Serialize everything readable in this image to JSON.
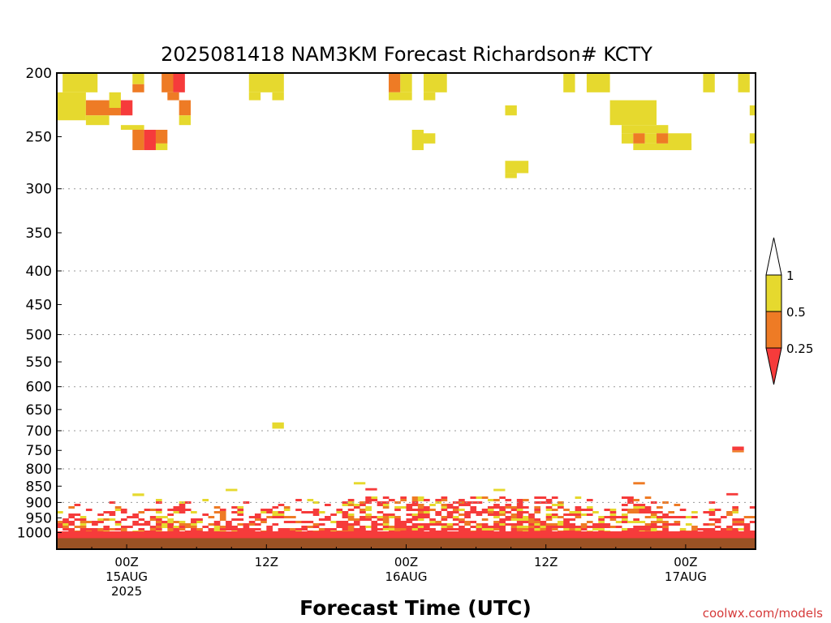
{
  "colors": {
    "ri_lt_025": "#f63b3b",
    "ri_025_05": "#ee7b25",
    "ri_05_1": "#e6d92e",
    "ground": "#9b5224",
    "grid": "#9a9a9a",
    "credit": "#d63a3a"
  },
  "chart_data": {
    "type": "heatmap",
    "title": "2025081418 NAM3KM Forecast Richardson# KCTY",
    "xlabel": "Forecast Time (UTC)",
    "ylabel": "",
    "credit": "coolwx.com/models",
    "x_unit": "forecast hour from 2025-08-14 18Z",
    "xlim": [
      0,
      60
    ],
    "y_unit": "hPa (log-pressure axis, decreasing upward)",
    "ylim": [
      1050,
      200
    ],
    "y_ticks": [
      {
        "value": 200,
        "label": "200"
      },
      {
        "value": 250,
        "label": "250"
      },
      {
        "value": 300,
        "label": "300"
      },
      {
        "value": 350,
        "label": "350"
      },
      {
        "value": 400,
        "label": "400"
      },
      {
        "value": 450,
        "label": "450"
      },
      {
        "value": 500,
        "label": "500"
      },
      {
        "value": 550,
        "label": "550"
      },
      {
        "value": 600,
        "label": "600"
      },
      {
        "value": 650,
        "label": "650"
      },
      {
        "value": 700,
        "label": "700"
      },
      {
        "value": 750,
        "label": "750"
      },
      {
        "value": 800,
        "label": "800"
      },
      {
        "value": 850,
        "label": "850"
      },
      {
        "value": 900,
        "label": "900"
      },
      {
        "value": 950,
        "label": "950"
      },
      {
        "value": 1000,
        "label": "1000"
      }
    ],
    "dotted_gridlines_at": [
      300,
      400,
      500,
      600,
      700,
      800,
      900
    ],
    "x_ticks": [
      {
        "value": 6,
        "lines": [
          "00Z",
          "15AUG",
          "2025"
        ]
      },
      {
        "value": 18,
        "lines": [
          "12Z"
        ]
      },
      {
        "value": 30,
        "lines": [
          "00Z",
          "16AUG"
        ]
      },
      {
        "value": 42,
        "lines": [
          "12Z"
        ]
      },
      {
        "value": 54,
        "lines": [
          "00Z",
          "17AUG"
        ]
      }
    ],
    "legend": {
      "placement": "right",
      "levels": [
        {
          "label": "1",
          "value": 1
        },
        {
          "label": "0.5",
          "value": 0.5
        },
        {
          "label": "0.25",
          "value": 0.25
        }
      ],
      "bins": [
        {
          "range": "> 1",
          "color": "white"
        },
        {
          "range": "0.5 - 1",
          "color": "ri_05_1"
        },
        {
          "range": "0.25 - 0.5",
          "color": "ri_025_05"
        },
        {
          "range": "< 0.25",
          "color": "ri_lt_025"
        }
      ]
    },
    "ground_level_hPa": 1020,
    "cells": [
      {
        "x0": 0.5,
        "x1": 3.5,
        "p0": 214,
        "p1": 200,
        "c": "y"
      },
      {
        "x0": 0,
        "x1": 2.5,
        "p0": 236,
        "p1": 214,
        "c": "y"
      },
      {
        "x0": 2.5,
        "x1": 5.5,
        "p0": 232,
        "p1": 220,
        "c": "o"
      },
      {
        "x0": 2.5,
        "x1": 4.5,
        "p0": 240,
        "p1": 232,
        "c": "y"
      },
      {
        "x0": 4.5,
        "x1": 5.5,
        "p0": 226,
        "p1": 214,
        "c": "y"
      },
      {
        "x0": 5.5,
        "x1": 6.5,
        "p0": 232,
        "p1": 220,
        "c": "r"
      },
      {
        "x0": 6.5,
        "x1": 7.5,
        "p0": 208,
        "p1": 200,
        "c": "y"
      },
      {
        "x0": 6.5,
        "x1": 7.5,
        "p0": 214,
        "p1": 208,
        "c": "o"
      },
      {
        "x0": 9,
        "x1": 10,
        "p0": 214,
        "p1": 200,
        "c": "o"
      },
      {
        "x0": 10,
        "x1": 11,
        "p0": 214,
        "p1": 200,
        "c": "r"
      },
      {
        "x0": 9.5,
        "x1": 10.5,
        "p0": 220,
        "p1": 214,
        "c": "o"
      },
      {
        "x0": 10.5,
        "x1": 11.5,
        "p0": 232,
        "p1": 220,
        "c": "o"
      },
      {
        "x0": 10.5,
        "x1": 11.5,
        "p0": 240,
        "p1": 232,
        "c": "y"
      },
      {
        "x0": 5.5,
        "x1": 7.5,
        "p0": 244,
        "p1": 240,
        "c": "y"
      },
      {
        "x0": 6.5,
        "x1": 7.5,
        "p0": 262,
        "p1": 244,
        "c": "o"
      },
      {
        "x0": 7.5,
        "x1": 8.5,
        "p0": 262,
        "p1": 244,
        "c": "r"
      },
      {
        "x0": 8.5,
        "x1": 9.5,
        "p0": 256,
        "p1": 244,
        "c": "o"
      },
      {
        "x0": 8.5,
        "x1": 9.5,
        "p0": 262,
        "p1": 256,
        "c": "y"
      },
      {
        "x0": 16.5,
        "x1": 19.5,
        "p0": 214,
        "p1": 200,
        "c": "y"
      },
      {
        "x0": 16.5,
        "x1": 17.5,
        "p0": 220,
        "p1": 214,
        "c": "y"
      },
      {
        "x0": 18.5,
        "x1": 19.5,
        "p0": 220,
        "p1": 214,
        "c": "y"
      },
      {
        "x0": 28.5,
        "x1": 29.5,
        "p0": 214,
        "p1": 200,
        "c": "o"
      },
      {
        "x0": 29.5,
        "x1": 30.5,
        "p0": 214,
        "p1": 200,
        "c": "y"
      },
      {
        "x0": 28.5,
        "x1": 30.5,
        "p0": 220,
        "p1": 214,
        "c": "y"
      },
      {
        "x0": 31.5,
        "x1": 33.5,
        "p0": 214,
        "p1": 200,
        "c": "y"
      },
      {
        "x0": 31.5,
        "x1": 32.5,
        "p0": 220,
        "p1": 214,
        "c": "y"
      },
      {
        "x0": 30.5,
        "x1": 31.5,
        "p0": 262,
        "p1": 244,
        "c": "y"
      },
      {
        "x0": 31.5,
        "x1": 32.5,
        "p0": 256,
        "p1": 247,
        "c": "y"
      },
      {
        "x0": 38.5,
        "x1": 39.5,
        "p0": 232,
        "p1": 224,
        "c": "y"
      },
      {
        "x0": 38.5,
        "x1": 40.5,
        "p0": 284,
        "p1": 272,
        "c": "y"
      },
      {
        "x0": 38.5,
        "x1": 39.5,
        "p0": 289,
        "p1": 284,
        "c": "y"
      },
      {
        "x0": 43.5,
        "x1": 44.5,
        "p0": 214,
        "p1": 200,
        "c": "y"
      },
      {
        "x0": 45.5,
        "x1": 47.5,
        "p0": 214,
        "p1": 200,
        "c": "y"
      },
      {
        "x0": 47.5,
        "x1": 51.5,
        "p0": 240,
        "p1": 220,
        "c": "y"
      },
      {
        "x0": 48.5,
        "x1": 52.5,
        "p0": 247,
        "p1": 240,
        "c": "y"
      },
      {
        "x0": 48.5,
        "x1": 49.5,
        "p0": 256,
        "p1": 247,
        "c": "y"
      },
      {
        "x0": 49.5,
        "x1": 50.5,
        "p0": 256,
        "p1": 247,
        "c": "o"
      },
      {
        "x0": 50.5,
        "x1": 51.5,
        "p0": 256,
        "p1": 247,
        "c": "y"
      },
      {
        "x0": 51.5,
        "x1": 52.5,
        "p0": 256,
        "p1": 247,
        "c": "o"
      },
      {
        "x0": 52.5,
        "x1": 54.5,
        "p0": 262,
        "p1": 247,
        "c": "y"
      },
      {
        "x0": 49.5,
        "x1": 54.5,
        "p0": 262,
        "p1": 256,
        "c": "y"
      },
      {
        "x0": 55.5,
        "x1": 56.5,
        "p0": 214,
        "p1": 200,
        "c": "y"
      },
      {
        "x0": 58.5,
        "x1": 59.5,
        "p0": 214,
        "p1": 200,
        "c": "y"
      },
      {
        "x0": 59.5,
        "x1": 60,
        "p0": 232,
        "p1": 224,
        "c": "y"
      },
      {
        "x0": 59.5,
        "x1": 60,
        "p0": 256,
        "p1": 247,
        "c": "y"
      },
      {
        "x0": 18.5,
        "x1": 19.5,
        "p0": 695,
        "p1": 680,
        "c": "y"
      },
      {
        "x0": 58,
        "x1": 59,
        "p0": 750,
        "p1": 740,
        "c": "r"
      },
      {
        "x0": 58,
        "x1": 59,
        "p0": 755,
        "p1": 750,
        "c": "o"
      },
      {
        "x0": 25.5,
        "x1": 26.5,
        "p0": 845,
        "p1": 838,
        "c": "y"
      },
      {
        "x0": 26.5,
        "x1": 27.5,
        "p0": 863,
        "p1": 856,
        "c": "r"
      },
      {
        "x0": 14.5,
        "x1": 15.5,
        "p0": 865,
        "p1": 858,
        "c": "y"
      },
      {
        "x0": 37.5,
        "x1": 38.5,
        "p0": 865,
        "p1": 858,
        "c": "y"
      },
      {
        "x0": 49.5,
        "x1": 50.5,
        "p0": 845,
        "p1": 838,
        "c": "o"
      },
      {
        "x0": 6.5,
        "x1": 7.5,
        "p0": 880,
        "p1": 872,
        "c": "y"
      },
      {
        "x0": 57.5,
        "x1": 58.5,
        "p0": 878,
        "p1": 871,
        "c": "r"
      }
    ]
  }
}
